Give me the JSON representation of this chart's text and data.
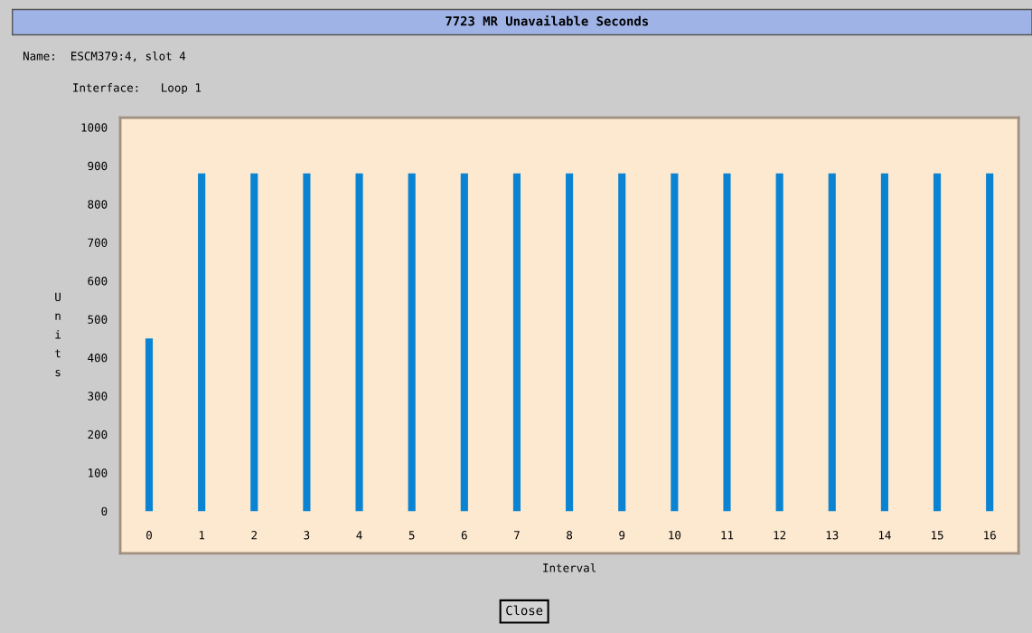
{
  "chart_data": {
    "type": "bar",
    "title": "7723 MR Unavailable Seconds",
    "subtitle": "Name:  ESCM379:4, slot 4",
    "annotations": [
      "Interface:   Loop 1",
      "Close"
    ],
    "xlabel": "Interval",
    "ylabel": "Units",
    "categories": [
      "0",
      "1",
      "2",
      "3",
      "4",
      "5",
      "6",
      "7",
      "8",
      "9",
      "10",
      "11",
      "12",
      "13",
      "14",
      "15",
      "16"
    ],
    "values": [
      450,
      880,
      880,
      880,
      880,
      880,
      880,
      880,
      880,
      880,
      880,
      880,
      880,
      880,
      880,
      880,
      880
    ],
    "color": "#0a84d2",
    "ylim": [
      -110,
      1025
    ],
    "yticks": [
      0,
      100,
      200,
      300,
      400,
      500,
      600,
      700,
      800,
      900,
      1000
    ],
    "grid": false
  }
}
